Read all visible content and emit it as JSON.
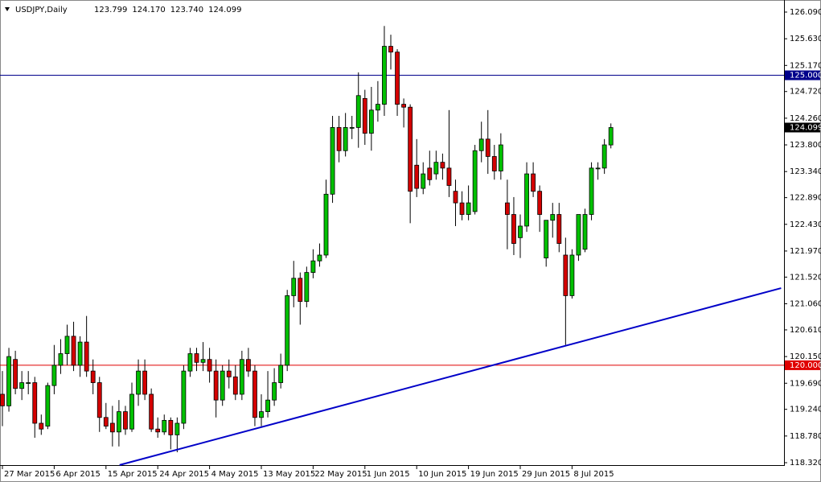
{
  "chart_data": {
    "type": "candlestick",
    "title": "USDJPY,Daily",
    "header_values": [
      "123.799",
      "124.170",
      "123.740",
      "124.099"
    ],
    "categories": [
      "27 Mar 2015",
      null,
      null,
      null,
      null,
      null,
      null,
      null,
      "6 Apr 2015",
      null,
      null,
      null,
      null,
      null,
      null,
      null,
      "15 Apr 2015",
      null,
      null,
      null,
      null,
      null,
      null,
      null,
      "24 Apr 2015",
      null,
      null,
      null,
      null,
      null,
      null,
      null,
      "4 May 2015",
      null,
      null,
      null,
      null,
      null,
      null,
      null,
      "13 May 2015",
      null,
      null,
      null,
      null,
      null,
      null,
      null,
      "22 May 2015",
      null,
      null,
      null,
      null,
      null,
      null,
      null,
      "1 Jun 2015",
      null,
      null,
      null,
      null,
      null,
      null,
      null,
      "10 Jun 2015",
      null,
      null,
      null,
      null,
      null,
      null,
      null,
      "19 Jun 2015",
      null,
      null,
      null,
      null,
      null,
      null,
      null,
      "29 Jun 2015",
      null,
      null,
      null,
      null,
      null,
      null,
      null,
      "8 Jul 2015",
      null,
      null,
      null,
      null,
      null,
      null
    ],
    "open": [
      119.5,
      119.3,
      120.1,
      119.6,
      119.7,
      119.7,
      119.0,
      118.95,
      119.65,
      120.0,
      120.2,
      120.5,
      120.0,
      120.4,
      119.9,
      119.7,
      119.1,
      119.0,
      118.85,
      119.2,
      118.9,
      119.5,
      119.9,
      119.5,
      118.9,
      118.85,
      119.05,
      118.8,
      119.0,
      119.9,
      120.2,
      120.05,
      120.1,
      119.9,
      119.4,
      119.9,
      119.8,
      119.5,
      120.1,
      119.9,
      119.1,
      119.2,
      119.4,
      119.7,
      120.0,
      121.2,
      121.5,
      121.1,
      121.6,
      121.8,
      121.9,
      122.95,
      124.1,
      123.7,
      124.1,
      124.1,
      124.6,
      124.0,
      124.4,
      124.5,
      125.5,
      125.4,
      124.5,
      124.45,
      123.45,
      123.05,
      123.4,
      123.3,
      123.5,
      123.4,
      123.0,
      122.8,
      122.6,
      122.65,
      123.7,
      123.9,
      123.6,
      123.35,
      122.8,
      122.6,
      122.2,
      122.4,
      123.3,
      123.0,
      121.85,
      122.5,
      122.6,
      121.9,
      121.2,
      121.9,
      122.0,
      122.6,
      123.4,
      123.4,
      123.799
    ],
    "high": [
      119.9,
      120.3,
      120.25,
      119.9,
      119.9,
      119.8,
      119.15,
      119.7,
      120.35,
      120.45,
      120.7,
      120.75,
      120.5,
      120.85,
      120.1,
      119.8,
      119.35,
      119.3,
      119.4,
      119.3,
      119.7,
      120.1,
      120.1,
      119.6,
      119.1,
      119.15,
      119.1,
      119.1,
      120.0,
      120.3,
      120.3,
      120.4,
      120.3,
      120.1,
      120.0,
      120.1,
      120.0,
      120.25,
      120.3,
      120.0,
      119.5,
      119.9,
      119.95,
      120.2,
      121.3,
      121.8,
      121.6,
      121.7,
      122.0,
      122.1,
      123.2,
      124.3,
      124.3,
      124.35,
      124.3,
      125.05,
      124.75,
      124.8,
      124.9,
      125.85,
      125.7,
      125.45,
      124.6,
      124.5,
      123.9,
      123.5,
      123.7,
      123.7,
      123.65,
      124.4,
      123.2,
      123.0,
      123.1,
      123.8,
      124.2,
      124.4,
      123.8,
      124.0,
      123.2,
      122.9,
      122.6,
      123.5,
      123.5,
      123.1,
      122.5,
      122.8,
      122.8,
      122.2,
      122.0,
      122.6,
      122.7,
      123.5,
      123.5,
      123.9,
      124.17
    ],
    "low": [
      118.95,
      119.2,
      119.5,
      119.4,
      119.5,
      118.75,
      118.8,
      118.9,
      119.5,
      119.85,
      120.0,
      119.9,
      119.8,
      119.8,
      119.5,
      118.85,
      118.9,
      118.6,
      118.6,
      118.8,
      118.85,
      119.3,
      119.4,
      118.85,
      118.75,
      118.8,
      118.55,
      118.5,
      118.9,
      119.8,
      119.9,
      119.9,
      119.7,
      119.1,
      119.3,
      119.6,
      119.4,
      119.4,
      119.8,
      118.95,
      118.95,
      119.1,
      119.3,
      119.6,
      119.9,
      121.0,
      120.7,
      121.0,
      121.5,
      121.7,
      121.85,
      122.8,
      123.5,
      123.6,
      123.9,
      123.75,
      123.8,
      123.7,
      124.2,
      124.3,
      125.1,
      124.3,
      124.1,
      122.45,
      122.9,
      122.95,
      123.1,
      123.2,
      123.2,
      122.9,
      122.4,
      122.5,
      122.5,
      122.6,
      123.5,
      123.3,
      123.2,
      123.2,
      122.0,
      121.9,
      121.85,
      122.3,
      122.9,
      122.3,
      121.7,
      122.2,
      121.95,
      120.35,
      121.15,
      121.8,
      121.95,
      122.5,
      123.2,
      123.3,
      123.74
    ],
    "close": [
      119.3,
      120.15,
      119.6,
      119.7,
      119.7,
      119.0,
      118.9,
      119.65,
      120.0,
      120.2,
      120.5,
      120.0,
      120.4,
      119.9,
      119.7,
      119.1,
      118.95,
      118.85,
      119.2,
      118.9,
      119.5,
      119.9,
      119.5,
      118.9,
      118.85,
      119.05,
      118.8,
      119.0,
      119.9,
      120.2,
      120.05,
      120.1,
      119.9,
      119.4,
      119.9,
      119.8,
      119.5,
      120.1,
      119.9,
      119.1,
      119.2,
      119.4,
      119.7,
      120.0,
      121.2,
      121.5,
      121.1,
      121.6,
      121.8,
      121.9,
      122.95,
      124.1,
      123.7,
      124.1,
      124.1,
      124.65,
      124.0,
      124.4,
      124.5,
      125.5,
      125.4,
      124.5,
      124.45,
      123.0,
      123.05,
      123.3,
      123.2,
      123.5,
      123.4,
      123.1,
      122.8,
      122.6,
      122.8,
      123.7,
      123.9,
      123.6,
      123.35,
      123.8,
      122.6,
      122.1,
      122.4,
      123.3,
      123.0,
      122.6,
      122.5,
      122.6,
      122.1,
      121.2,
      121.9,
      122.6,
      122.6,
      123.4,
      123.4,
      123.8,
      124.099
    ],
    "up_color": "#00c000",
    "down_color": "#d40000",
    "ylim": [
      118.32,
      126.09
    ],
    "yticks": [
      {
        "value": 126.09,
        "label": "126.090"
      },
      {
        "value": 125.63,
        "label": "125.630"
      },
      {
        "value": 125.17,
        "label": "125.170"
      },
      {
        "value": 124.72,
        "label": "124.720"
      },
      {
        "value": 124.26,
        "label": "124.260"
      },
      {
        "value": 123.8,
        "label": "123.800"
      },
      {
        "value": 123.34,
        "label": "123.340"
      },
      {
        "value": 122.89,
        "label": "122.890"
      },
      {
        "value": 122.43,
        "label": "122.430"
      },
      {
        "value": 121.97,
        "label": "121.970"
      },
      {
        "value": 121.52,
        "label": "121.520"
      },
      {
        "value": 121.06,
        "label": "121.060"
      },
      {
        "value": 120.61,
        "label": "120.610"
      },
      {
        "value": 120.15,
        "label": "120.150"
      },
      {
        "value": 119.69,
        "label": "119.690"
      },
      {
        "value": 119.24,
        "label": "119.240"
      },
      {
        "value": 118.78,
        "label": "118.780"
      },
      {
        "value": 118.32,
        "label": "118.320"
      }
    ],
    "hlines": [
      {
        "value": 125,
        "label": "125.000",
        "color": "#00008b"
      },
      {
        "value": 120,
        "label": "120.000",
        "color": "#e00000"
      }
    ],
    "price_label": {
      "value": 124.099,
      "label": "124.099"
    },
    "trendline": {
      "x": [
        18.1,
        120.3
      ],
      "y": [
        118.28,
        121.33
      ],
      "color": "#0000c8"
    }
  }
}
